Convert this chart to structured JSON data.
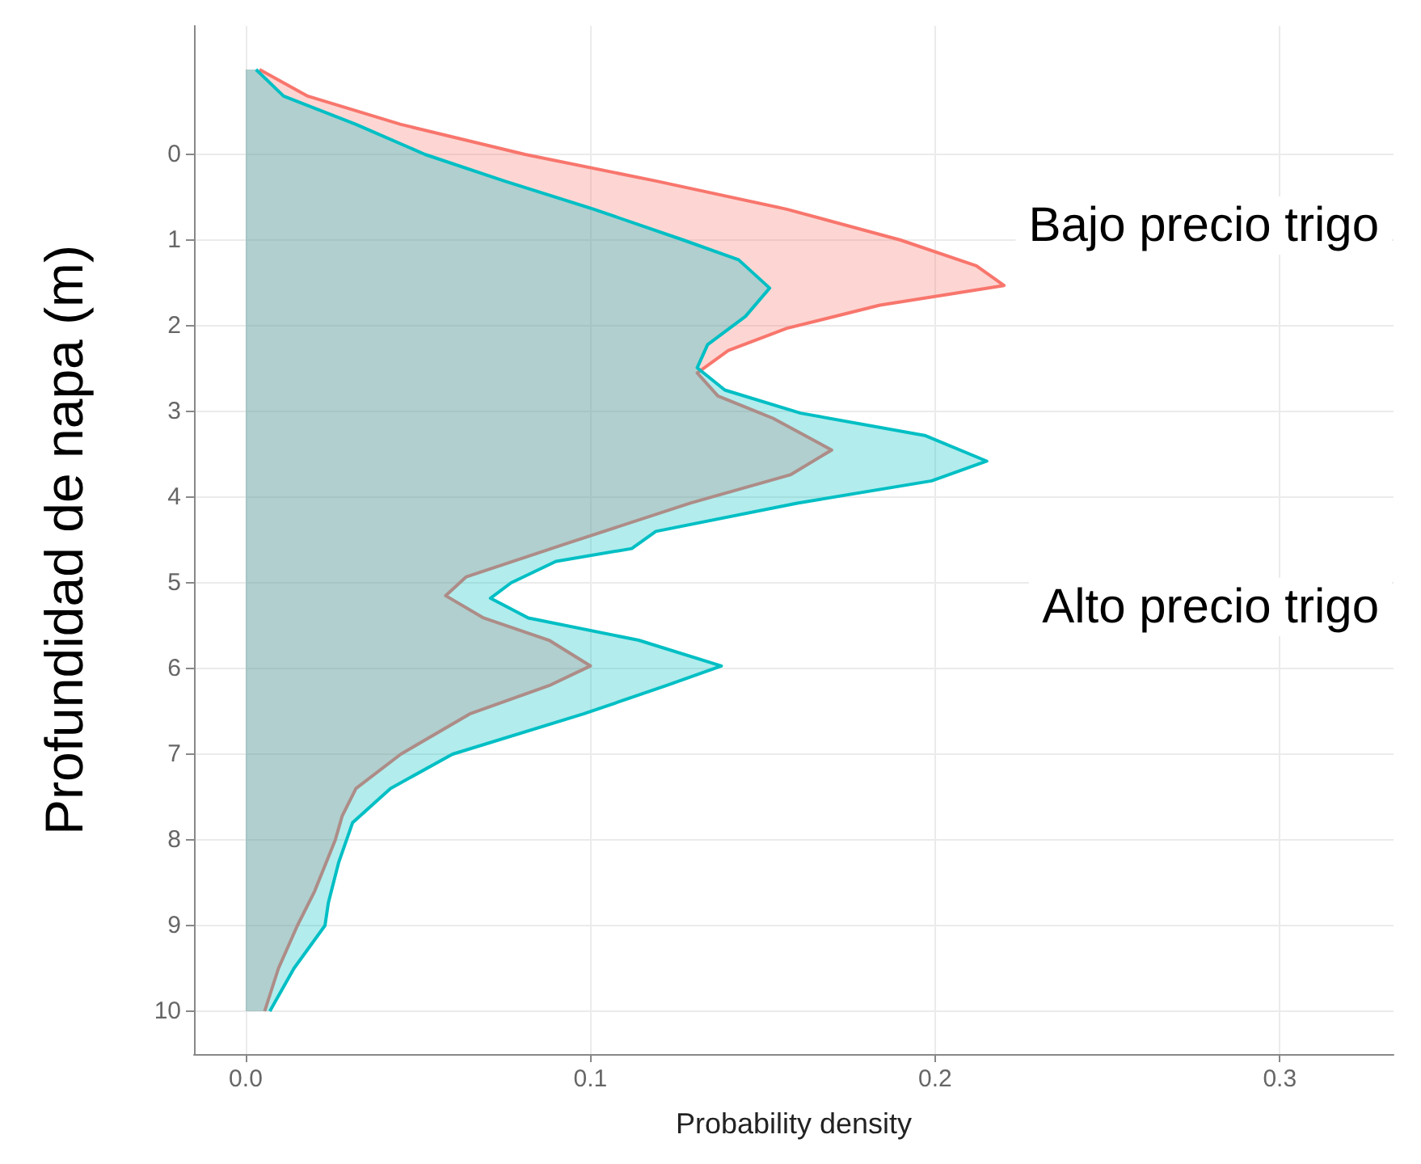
{
  "chart_data": {
    "type": "area",
    "orientation": "horizontal",
    "xlabel": "Probability density",
    "ylabel": "Profundidad de napa (m)",
    "xlim": [
      -0.015,
      0.333
    ],
    "xticks": [
      {
        "value": 0,
        "label": "0.0"
      },
      0.1,
      0.2,
      0.3
    ],
    "ylim": [
      10.5,
      -1.5
    ],
    "yticks": [
      0,
      1,
      2,
      3,
      4,
      5,
      6,
      7,
      8,
      9,
      10
    ],
    "grid": true,
    "legend": false,
    "series": [
      {
        "name": "Bajo precio trigo",
        "color": "#f8766d",
        "x": [
          -0.99,
          -0.68,
          -0.35,
          0,
          0.31,
          0.64,
          1.0,
          1.3,
          1.53,
          1.76,
          2.03,
          2.29,
          2.55,
          2.82,
          3.08,
          3.45,
          3.74,
          4.07,
          4.53,
          4.93,
          5.15,
          5.41,
          5.67,
          5.97,
          6.2,
          6.53,
          7.0,
          7.4,
          7.72,
          8.0,
          8.6,
          9.0,
          9.5,
          10.0
        ],
        "values": [
          0.004,
          0.018,
          0.045,
          0.081,
          0.119,
          0.157,
          0.19,
          0.212,
          0.22,
          0.184,
          0.157,
          0.14,
          0.131,
          0.137,
          0.153,
          0.17,
          0.158,
          0.129,
          0.094,
          0.064,
          0.058,
          0.069,
          0.088,
          0.1,
          0.088,
          0.065,
          0.045,
          0.032,
          0.028,
          0.026,
          0.02,
          0.015,
          0.0095,
          0.0055
        ]
      },
      {
        "name": "Alto precio trigo",
        "color": "#00bfc4",
        "x": [
          -0.99,
          -0.68,
          -0.35,
          0,
          0.31,
          0.64,
          1.0,
          1.23,
          1.56,
          1.89,
          2.22,
          2.49,
          2.75,
          3.02,
          3.28,
          3.58,
          3.81,
          4.07,
          4.4,
          4.6,
          4.75,
          5.0,
          5.18,
          5.41,
          5.67,
          5.97,
          6.2,
          6.53,
          7.0,
          7.4,
          7.8,
          8.26,
          8.73,
          9.0,
          9.5,
          10.0
        ],
        "values": [
          0.003,
          0.011,
          0.032,
          0.052,
          0.075,
          0.101,
          0.127,
          0.143,
          0.152,
          0.145,
          0.134,
          0.131,
          0.139,
          0.161,
          0.197,
          0.215,
          0.199,
          0.16,
          0.119,
          0.112,
          0.09,
          0.077,
          0.071,
          0.082,
          0.114,
          0.138,
          0.122,
          0.098,
          0.06,
          0.042,
          0.031,
          0.027,
          0.024,
          0.023,
          0.014,
          0.007
        ]
      }
    ]
  }
}
